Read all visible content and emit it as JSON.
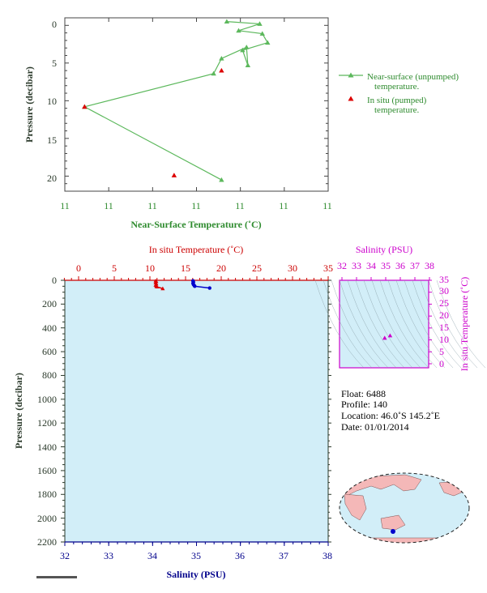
{
  "colors": {
    "near_surface": "#5cb85c",
    "in_situ_temp": "#dd0000",
    "salinity": "#0000cc",
    "ts_diagram": "#cc00cc",
    "profile_bg": "#d2eef8",
    "ocean": "#d2eef8",
    "land": "#f4b8b8"
  },
  "top_chart": {
    "xlabel": "Near-Surface Temperature (˚C)",
    "ylabel": "Pressure (decibar)",
    "xtick_labels": [
      "11",
      "11",
      "11",
      "11",
      "11",
      "11",
      "11"
    ],
    "ytick_labels": [
      "0",
      "5",
      "10",
      "15",
      "20"
    ],
    "legend": {
      "unpumped_line1": "Near-surface (unpumped)",
      "unpumped_line2": "temperature.",
      "pumped_line1": "In situ (pumped)",
      "pumped_line2": "temperature."
    }
  },
  "main_chart": {
    "top_xlabel": "In situ Temperature (˚C)",
    "bottom_xlabel": "Salinity (PSU)",
    "ylabel": "Pressure (decibar)",
    "temp_tick_labels": [
      "0",
      "5",
      "10",
      "15",
      "20",
      "25",
      "30",
      "35"
    ],
    "sal_tick_labels": [
      "32",
      "33",
      "34",
      "35",
      "36",
      "37",
      "38"
    ],
    "pressure_tick_labels": [
      "0",
      "200",
      "400",
      "600",
      "800",
      "1000",
      "1200",
      "1400",
      "1600",
      "1800",
      "2000",
      "2200"
    ]
  },
  "ts_chart": {
    "top_label": "Salinity (PSU)",
    "right_label": "In situ Temperature (˚C)",
    "sal_tick_labels": [
      "32",
      "33",
      "34",
      "35",
      "36",
      "37",
      "38"
    ],
    "temp_tick_labels": [
      "0",
      "5",
      "10",
      "15",
      "20",
      "25",
      "30",
      "35"
    ]
  },
  "info": {
    "float": "Float:  6488",
    "profile": "Profile:  140",
    "location": "Location:  46.0˚S  145.2˚E",
    "date": "Date:  01/01/2014"
  },
  "chart_data": [
    {
      "type": "scatter",
      "title": "",
      "xlabel": "Near-Surface Temperature (˚C)",
      "ylabel": "Pressure (decibar)",
      "ylim": [
        22,
        -1
      ],
      "series": [
        {
          "name": "Near-surface (unpumped) temperature.",
          "points": [
            [
              0.615,
              -0.5
            ],
            [
              0.74,
              -0.2
            ],
            [
              0.66,
              0.7
            ],
            [
              0.75,
              1.1
            ],
            [
              0.77,
              2.3
            ],
            [
              0.675,
              3.3
            ],
            [
              0.695,
              5.3
            ],
            [
              0.69,
              2.9
            ],
            [
              0.595,
              4.4
            ],
            [
              0.565,
              6.4
            ],
            [
              0.075,
              10.8
            ],
            [
              0.595,
              20.5
            ]
          ]
        },
        {
          "name": "In situ (pumped) temperature.",
          "points": [
            [
              0.595,
              6.0
            ],
            [
              0.075,
              10.8
            ],
            [
              0.415,
              19.9
            ]
          ]
        }
      ]
    },
    {
      "type": "line",
      "xlabel": "In situ Temperature (˚C)",
      "ylabel": "Pressure (decibar)",
      "xlim": [
        -2,
        35
      ],
      "ylim": [
        2200,
        0
      ],
      "series": [
        {
          "name": "In situ Temperature",
          "points": [
            [
              10.8,
              5
            ],
            [
              10.9,
              10
            ],
            [
              10.8,
              20
            ],
            [
              10.9,
              30
            ],
            [
              10.8,
              40
            ],
            [
              10.9,
              50
            ],
            [
              11.0,
              55
            ],
            [
              11.8,
              70
            ]
          ]
        }
      ]
    },
    {
      "type": "line",
      "xlabel": "Salinity (PSU)",
      "ylabel": "Pressure (decibar)",
      "xlim": [
        32,
        38
      ],
      "ylim": [
        2200,
        0
      ],
      "series": [
        {
          "name": "Salinity",
          "points": [
            [
              34.92,
              5
            ],
            [
              34.93,
              15
            ],
            [
              34.92,
              25
            ],
            [
              34.93,
              35
            ],
            [
              34.95,
              45
            ],
            [
              34.96,
              50
            ],
            [
              35.3,
              65
            ]
          ]
        }
      ]
    },
    {
      "type": "scatter",
      "xlabel": "Salinity (PSU)",
      "ylabel": "In situ Temperature (˚C)",
      "xlim": [
        32,
        38
      ],
      "ylim": [
        -2,
        35
      ],
      "series": [
        {
          "name": "T-S",
          "points": [
            [
              34.93,
              10.8
            ],
            [
              35.3,
              11.8
            ]
          ]
        }
      ]
    }
  ]
}
